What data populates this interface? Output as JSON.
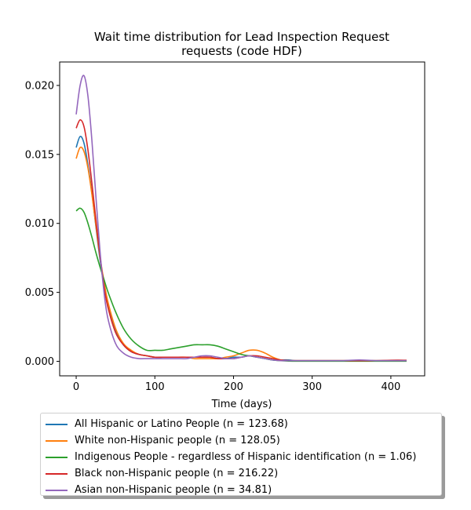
{
  "chart_data": {
    "type": "line",
    "title": "Wait time distribution  for Lead Inspection Request\nrequests (code HDF)",
    "xlabel": "Time (days)",
    "ylabel": "",
    "xlim": [
      -21,
      443
    ],
    "ylim": [
      -0.00105,
      0.0217
    ],
    "xticks": [
      0,
      100,
      200,
      300,
      400
    ],
    "yticks": [
      0.0,
      0.005,
      0.01,
      0.015,
      0.02
    ],
    "ytick_labels": [
      "0.000",
      "0.005",
      "0.010",
      "0.015",
      "0.020"
    ],
    "grid": false,
    "legend_position": "below",
    "x": [
      0,
      5,
      10,
      15,
      20,
      25,
      30,
      35,
      40,
      50,
      60,
      70,
      80,
      90,
      100,
      110,
      120,
      130,
      140,
      150,
      160,
      170,
      180,
      190,
      200,
      210,
      220,
      230,
      240,
      250,
      260,
      270,
      280,
      300,
      320,
      340,
      360,
      380,
      400,
      420
    ],
    "series": [
      {
        "name": "All Hispanic or Latino People (n = 123.68)",
        "color": "#1f77b4",
        "values": [
          0.0155,
          0.0163,
          0.0158,
          0.0142,
          0.0122,
          0.0098,
          0.0075,
          0.0056,
          0.0041,
          0.0022,
          0.0012,
          0.0007,
          0.0005,
          0.0004,
          0.0003,
          0.0003,
          0.0003,
          0.0003,
          0.0003,
          0.0003,
          0.0003,
          0.0003,
          0.0002,
          0.0002,
          0.0003,
          0.0003,
          0.0004,
          0.0003,
          0.0002,
          0.0001,
          0.0001,
          0.0001,
          5e-05,
          5e-05,
          5e-05,
          5e-05,
          5e-05,
          5e-05,
          5e-05,
          5e-05
        ]
      },
      {
        "name": "White non-Hispanic people (n = 128.05)",
        "color": "#ff7f0e",
        "values": [
          0.0147,
          0.0155,
          0.0152,
          0.014,
          0.0121,
          0.0099,
          0.0077,
          0.0059,
          0.0044,
          0.0024,
          0.0013,
          0.0008,
          0.0005,
          0.0004,
          0.0003,
          0.0003,
          0.0003,
          0.0003,
          0.0003,
          0.0002,
          0.0002,
          0.0002,
          0.0002,
          0.0003,
          0.0004,
          0.0006,
          0.0008,
          0.0008,
          0.0006,
          0.0003,
          0.0001,
          5e-05,
          5e-05,
          5e-05,
          5e-05,
          5e-05,
          5e-05,
          5e-05,
          5e-05,
          5e-05
        ]
      },
      {
        "name": "Indigenous People - regardless of Hispanic identification (n = 1.06)",
        "color": "#2ca02c",
        "values": [
          0.0109,
          0.0111,
          0.0108,
          0.01,
          0.009,
          0.0079,
          0.0069,
          0.006,
          0.0051,
          0.0036,
          0.0024,
          0.0016,
          0.0011,
          0.0008,
          0.0008,
          0.0008,
          0.0009,
          0.001,
          0.0011,
          0.0012,
          0.0012,
          0.0012,
          0.0011,
          0.0009,
          0.0007,
          0.0005,
          0.0004,
          0.0003,
          0.0002,
          0.0001,
          5e-05,
          2e-05,
          1e-05,
          1e-05,
          1e-05,
          1e-05,
          1e-05,
          1e-05,
          1e-05,
          1e-05
        ]
      },
      {
        "name": "Black non-Hispanic people (n = 216.22)",
        "color": "#d62728",
        "values": [
          0.0169,
          0.0175,
          0.017,
          0.0153,
          0.0129,
          0.0103,
          0.0078,
          0.0056,
          0.004,
          0.0021,
          0.0012,
          0.0007,
          0.0005,
          0.0004,
          0.0003,
          0.0003,
          0.0003,
          0.0003,
          0.0003,
          0.0003,
          0.0003,
          0.0003,
          0.0002,
          0.0002,
          0.0002,
          0.0003,
          0.0004,
          0.0004,
          0.0003,
          0.0002,
          0.0001,
          5e-05,
          5e-05,
          5e-05,
          5e-05,
          5e-05,
          5e-05,
          5e-05,
          8e-05,
          8e-05
        ]
      },
      {
        "name": "Asian non-Hispanic people (n = 34.81)",
        "color": "#9467bd",
        "values": [
          0.0179,
          0.02,
          0.0207,
          0.0192,
          0.016,
          0.012,
          0.0082,
          0.0052,
          0.0032,
          0.0013,
          0.0006,
          0.0003,
          0.0002,
          0.0002,
          0.0002,
          0.0002,
          0.0002,
          0.0002,
          0.0002,
          0.0003,
          0.0004,
          0.0004,
          0.0003,
          0.0002,
          0.0002,
          0.0003,
          0.0004,
          0.0003,
          0.0002,
          0.0001,
          5e-05,
          5e-05,
          5e-05,
          5e-05,
          5e-05,
          5e-05,
          0.0001,
          5e-05,
          5e-05,
          5e-05
        ]
      }
    ]
  }
}
